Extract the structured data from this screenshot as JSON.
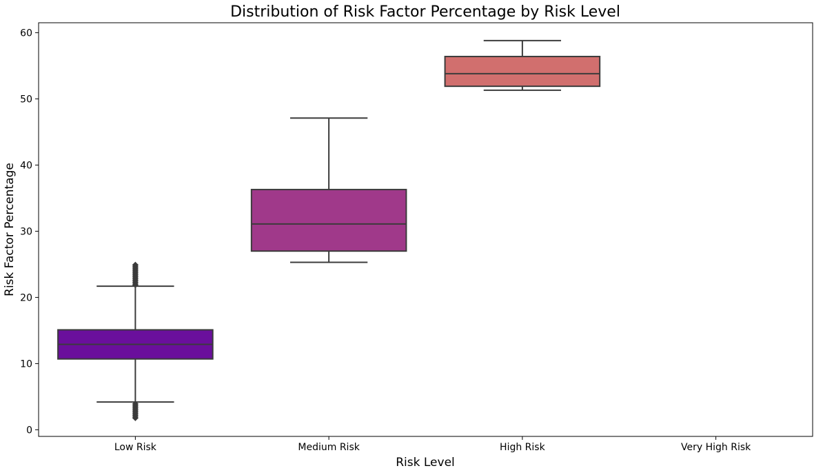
{
  "chart_data": {
    "type": "box",
    "title": "Distribution of Risk Factor Percentage by Risk Level",
    "xlabel": "Risk Level",
    "ylabel": "Risk Factor Percentage",
    "categories": [
      "Low Risk",
      "Medium Risk",
      "High Risk",
      "Very High Risk"
    ],
    "ylim": [
      -1,
      61.5
    ],
    "yticks": [
      0,
      10,
      20,
      30,
      40,
      50,
      60
    ],
    "grid": false,
    "legend": "none",
    "boxes": [
      {
        "category": "Low Risk",
        "color": "#6a0f9c",
        "whisker_low": 4.2,
        "q1": 10.7,
        "median": 12.9,
        "q3": 15.1,
        "whisker_high": 21.7,
        "outliers": [
          1.8,
          2.1,
          2.4,
          2.7,
          3.0,
          3.3,
          3.6,
          3.9,
          21.9,
          22.2,
          22.5,
          22.8,
          23.1,
          23.4,
          23.7,
          24.0,
          24.3,
          24.6,
          24.9
        ]
      },
      {
        "category": "Medium Risk",
        "color": "#a0398a",
        "whisker_low": 25.3,
        "q1": 27.0,
        "median": 31.1,
        "q3": 36.3,
        "whisker_high": 47.1,
        "outliers": []
      },
      {
        "category": "High Risk",
        "color": "#d16f6e",
        "whisker_low": 51.3,
        "q1": 51.9,
        "median": 53.8,
        "q3": 56.4,
        "whisker_high": 58.8,
        "outliers": []
      },
      {
        "category": "Very High Risk",
        "color": "",
        "empty": true
      }
    ]
  }
}
